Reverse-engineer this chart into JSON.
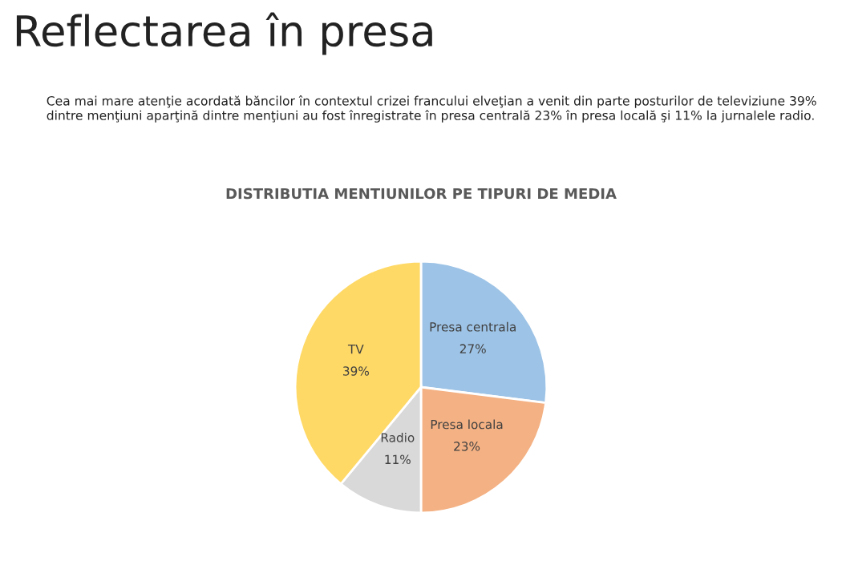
{
  "chart_data": {
    "type": "pie",
    "title": "DISTRIBUTIA MENTIUNILOR PE TIPURI DE MEDIA",
    "categories": [
      "Presa centrala",
      "Presa locala",
      "Radio",
      "TV"
    ],
    "values": [
      27,
      23,
      11,
      39
    ],
    "colors": [
      "#9dc3e6",
      "#f4b183",
      "#d9d9d9",
      "#ffd966"
    ],
    "value_labels": [
      "27%",
      "23%",
      "11%",
      "39%"
    ],
    "legend": false,
    "annotations": [
      "Reflectarea în presa",
      "Cea mai mare atenţie acordată băncilor în contextul crizei francului elveţian a venit din parte posturilor de televiziune 39% dintre menţiuni aparţină dintre menţiuni au fost înregistrate în presa centrală 23% în presa locală şi 11% la jurnalele radio."
    ]
  }
}
